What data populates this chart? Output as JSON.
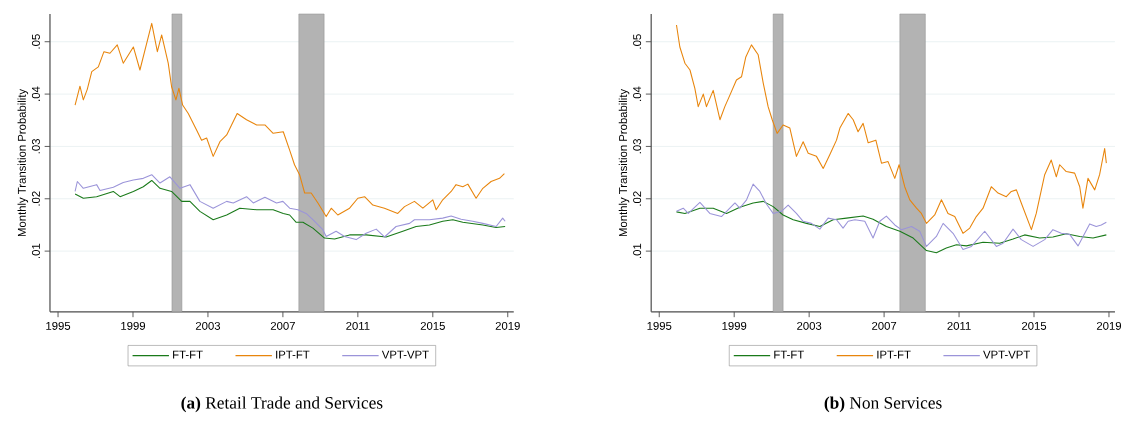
{
  "chart_data": [
    {
      "type": "line",
      "title": "**(a)** Retail Trade and Services",
      "ylabel": "Monthly Transition Probability",
      "xlim": [
        1994.57,
        2019.32
      ],
      "xticks": [
        1995,
        1999,
        2003,
        2007,
        2011,
        2015,
        2019
      ],
      "ylim": [
        -0.0016,
        0.0553
      ],
      "yticks": [
        {
          "value": 0.01,
          "label": ".01"
        },
        {
          "value": 0.02,
          "label": ".02"
        },
        {
          "value": 0.03,
          "label": ".03"
        },
        {
          "value": 0.04,
          "label": ".04"
        },
        {
          "value": 0.05,
          "label": ".05"
        }
      ],
      "grid": "y",
      "legend": "bottom",
      "line_style": "solid",
      "bands": [
        {
          "axis": "x",
          "from": 2001.08,
          "to": 2001.61,
          "color": "#b3b3b3"
        },
        {
          "axis": "x",
          "from": 2007.85,
          "to": 2009.2,
          "color": "#b3b3b3"
        }
      ],
      "series": [
        {
          "name": "FT-FT",
          "color": "#1a7a1a",
          "x": [
            1995.91,
            1996.35,
            1997.06,
            1997.95,
            1998.31,
            1999.02,
            1999.55,
            2000.0,
            2000.44,
            2001.06,
            2001.6,
            2002.04,
            2002.57,
            2003.28,
            2004.0,
            2004.7,
            2005.6,
            2006.48,
            2007.02,
            2007.36,
            2007.71,
            2008.07,
            2008.6,
            2009.22,
            2009.76,
            2010.56,
            2011.44,
            2012.51,
            2013.4,
            2014.11,
            2014.82,
            2015.53,
            2016.07,
            2016.6,
            2017.67,
            2018.38,
            2018.86
          ],
          "values": [
            0.0209,
            0.0201,
            0.0204,
            0.0214,
            0.0204,
            0.0214,
            0.0223,
            0.0235,
            0.022,
            0.0214,
            0.0195,
            0.0195,
            0.0176,
            0.016,
            0.0169,
            0.0182,
            0.0179,
            0.0179,
            0.0172,
            0.0169,
            0.0155,
            0.0155,
            0.0144,
            0.0125,
            0.0123,
            0.0131,
            0.0131,
            0.0127,
            0.0138,
            0.0147,
            0.015,
            0.0157,
            0.016,
            0.0155,
            0.015,
            0.0145,
            0.0147
          ]
        },
        {
          "name": "IPT-FT",
          "color": "#e8850c",
          "x": [
            1995.91,
            1996.17,
            1996.35,
            1996.56,
            1996.8,
            1997.15,
            1997.45,
            1997.77,
            1998.16,
            1998.48,
            1999.02,
            1999.37,
            1999.73,
            2000.0,
            2000.3,
            2000.53,
            2000.88,
            2001.06,
            2001.29,
            2001.45,
            2001.65,
            2001.95,
            2002.4,
            2002.66,
            2002.93,
            2003.28,
            2003.64,
            2004.0,
            2004.26,
            2004.56,
            2005.06,
            2005.6,
            2006.04,
            2006.48,
            2007.02,
            2007.36,
            2007.62,
            2007.89,
            2008.16,
            2008.51,
            2008.87,
            2009.31,
            2009.58,
            2009.93,
            2010.56,
            2011.0,
            2011.36,
            2011.8,
            2012.42,
            2013.13,
            2013.49,
            2014.02,
            2014.47,
            2015.0,
            2015.18,
            2015.53,
            2015.98,
            2016.24,
            2016.6,
            2016.87,
            2017.31,
            2017.67,
            2018.11,
            2018.56,
            2018.82
          ],
          "values": [
            0.0379,
            0.0415,
            0.0389,
            0.0409,
            0.0443,
            0.0452,
            0.0481,
            0.0478,
            0.0494,
            0.0459,
            0.049,
            0.0446,
            0.0497,
            0.0535,
            0.0481,
            0.0513,
            0.0459,
            0.0414,
            0.0389,
            0.0411,
            0.0379,
            0.0363,
            0.0331,
            0.0312,
            0.0316,
            0.0281,
            0.0309,
            0.0322,
            0.0341,
            0.0363,
            0.0351,
            0.0341,
            0.0341,
            0.0325,
            0.0328,
            0.0293,
            0.0265,
            0.0246,
            0.0211,
            0.0211,
            0.0192,
            0.0166,
            0.0182,
            0.0169,
            0.0182,
            0.0201,
            0.0204,
            0.0188,
            0.0182,
            0.0172,
            0.0185,
            0.0195,
            0.0182,
            0.0198,
            0.0179,
            0.0198,
            0.0214,
            0.0227,
            0.0223,
            0.0228,
            0.0201,
            0.022,
            0.0233,
            0.0239,
            0.0248
          ]
        },
        {
          "name": "VPT-VPT",
          "color": "#9b94d9",
          "x": [
            1995.91,
            1996.03,
            1996.35,
            1997.06,
            1997.24,
            1997.95,
            1998.48,
            1999.02,
            1999.55,
            2000.0,
            2000.44,
            2000.97,
            2001.51,
            2002.04,
            2002.57,
            2003.28,
            2004.0,
            2004.35,
            2005.06,
            2005.42,
            2006.04,
            2006.66,
            2007.0,
            2007.36,
            2007.8,
            2008.24,
            2008.6,
            2009.13,
            2009.31,
            2009.84,
            2010.29,
            2010.91,
            2011.44,
            2011.98,
            2012.42,
            2013.04,
            2013.76,
            2014.02,
            2014.82,
            2015.53,
            2015.98,
            2016.51,
            2017.13,
            2017.67,
            2018.38,
            2018.73,
            2018.86
          ],
          "values": [
            0.0214,
            0.0233,
            0.022,
            0.0227,
            0.0216,
            0.0222,
            0.0231,
            0.0236,
            0.0239,
            0.0246,
            0.023,
            0.0242,
            0.022,
            0.0227,
            0.0195,
            0.0182,
            0.0195,
            0.0192,
            0.0204,
            0.0192,
            0.0203,
            0.0192,
            0.0195,
            0.0182,
            0.0179,
            0.0172,
            0.016,
            0.0141,
            0.0128,
            0.0138,
            0.0128,
            0.0122,
            0.0134,
            0.0142,
            0.0127,
            0.0147,
            0.0153,
            0.016,
            0.016,
            0.0163,
            0.0167,
            0.0161,
            0.0157,
            0.0153,
            0.0147,
            0.0163,
            0.0157
          ]
        }
      ]
    },
    {
      "type": "line",
      "title": "**(b)** Non Services",
      "ylabel": "Monthly Transition Probability",
      "xlim": [
        1994.57,
        2019.32
      ],
      "xticks": [
        1995,
        1999,
        2003,
        2007,
        2011,
        2015,
        2019
      ],
      "ylim": [
        -0.0016,
        0.0553
      ],
      "yticks": [
        {
          "value": 0.01,
          "label": ".01"
        },
        {
          "value": 0.02,
          "label": ".02"
        },
        {
          "value": 0.03,
          "label": ".03"
        },
        {
          "value": 0.04,
          "label": ".04"
        },
        {
          "value": 0.05,
          "label": ".05"
        }
      ],
      "grid": "y",
      "legend": "bottom",
      "line_style": "solid",
      "bands": [
        {
          "axis": "x",
          "from": 2001.08,
          "to": 2001.61,
          "color": "#b3b3b3"
        },
        {
          "axis": "x",
          "from": 2007.84,
          "to": 2009.2,
          "color": "#b3b3b3"
        }
      ],
      "series": [
        {
          "name": "FT-FT",
          "color": "#1a7a1a",
          "x": [
            1995.92,
            1996.37,
            1997.17,
            1997.88,
            1998.59,
            1999.3,
            2000.01,
            2000.55,
            2001.08,
            2001.61,
            2002.15,
            2002.86,
            2003.57,
            2004.28,
            2004.99,
            2005.88,
            2006.41,
            2007.12,
            2007.84,
            2008.55,
            2009.26,
            2009.79,
            2010.32,
            2010.86,
            2011.39,
            2012.28,
            2013.17,
            2013.88,
            2014.5,
            2015.3,
            2016.01,
            2016.72,
            2017.44,
            2018.15,
            2018.86
          ],
          "values": [
            0.0175,
            0.0172,
            0.0182,
            0.0182,
            0.0172,
            0.0184,
            0.0192,
            0.0195,
            0.0185,
            0.0169,
            0.016,
            0.0153,
            0.0147,
            0.016,
            0.0163,
            0.0167,
            0.0161,
            0.0147,
            0.0138,
            0.0125,
            0.0101,
            0.0097,
            0.0106,
            0.0112,
            0.011,
            0.0117,
            0.0115,
            0.0123,
            0.0131,
            0.0125,
            0.0127,
            0.0133,
            0.0128,
            0.0125,
            0.0131
          ]
        },
        {
          "name": "IPT-FT",
          "color": "#e8850c",
          "x": [
            1995.92,
            1996.1,
            1996.37,
            1996.64,
            1996.9,
            1997.08,
            1997.35,
            1997.52,
            1997.88,
            1998.24,
            1998.5,
            1998.77,
            1999.12,
            1999.39,
            1999.62,
            1999.92,
            2000.28,
            2000.55,
            2000.81,
            2001.03,
            2001.29,
            2001.61,
            2001.97,
            2002.32,
            2002.68,
            2002.95,
            2003.39,
            2003.75,
            2004.1,
            2004.46,
            2004.64,
            2005.08,
            2005.35,
            2005.61,
            2005.88,
            2006.15,
            2006.56,
            2006.86,
            2007.21,
            2007.57,
            2007.8,
            2008.1,
            2008.37,
            2008.73,
            2008.99,
            2009.26,
            2009.7,
            2010.06,
            2010.41,
            2010.77,
            2011.21,
            2011.57,
            2011.92,
            2012.28,
            2012.72,
            2013.08,
            2013.52,
            2013.79,
            2014.06,
            2014.32,
            2014.86,
            2015.12,
            2015.57,
            2015.92,
            2016.19,
            2016.37,
            2016.72,
            2017.17,
            2017.44,
            2017.61,
            2017.88,
            2018.24,
            2018.5,
            2018.77,
            2018.86
          ],
          "values": [
            0.0532,
            0.049,
            0.0459,
            0.0446,
            0.0411,
            0.0376,
            0.04,
            0.0376,
            0.0407,
            0.0351,
            0.0376,
            0.0398,
            0.0427,
            0.0433,
            0.0471,
            0.0494,
            0.0475,
            0.0421,
            0.0376,
            0.0351,
            0.0325,
            0.0341,
            0.0335,
            0.0281,
            0.0309,
            0.0287,
            0.0281,
            0.0258,
            0.0284,
            0.0312,
            0.0335,
            0.0363,
            0.0351,
            0.0328,
            0.0344,
            0.0307,
            0.0312,
            0.0268,
            0.0271,
            0.0239,
            0.0265,
            0.0223,
            0.0198,
            0.0182,
            0.0172,
            0.0153,
            0.0169,
            0.0198,
            0.0172,
            0.0166,
            0.0134,
            0.0144,
            0.0166,
            0.0182,
            0.0223,
            0.0211,
            0.0204,
            0.0214,
            0.0217,
            0.0192,
            0.0141,
            0.0172,
            0.0246,
            0.0274,
            0.0242,
            0.0265,
            0.0252,
            0.0249,
            0.0223,
            0.0182,
            0.0239,
            0.0217,
            0.0246,
            0.0296,
            0.0268
          ]
        },
        {
          "name": "VPT-VPT",
          "color": "#9b94d9",
          "x": [
            1995.92,
            1996.28,
            1996.55,
            1997.17,
            1997.7,
            1998.32,
            1999.04,
            1999.3,
            1999.66,
            2000.01,
            2000.37,
            2000.72,
            2001.08,
            2001.52,
            2001.88,
            2002.32,
            2002.68,
            2003.12,
            2003.57,
            2004.01,
            2004.46,
            2004.81,
            2005.08,
            2005.44,
            2005.97,
            2006.41,
            2006.77,
            2007.12,
            2007.57,
            2007.92,
            2008.46,
            2008.9,
            2009.26,
            2009.79,
            2010.15,
            2010.68,
            2011.21,
            2011.66,
            2012.37,
            2012.99,
            2013.35,
            2013.88,
            2014.32,
            2014.95,
            2015.57,
            2016.01,
            2016.46,
            2016.9,
            2017.35,
            2017.97,
            2018.32,
            2018.59,
            2018.86
          ],
          "values": [
            0.0176,
            0.0182,
            0.0172,
            0.0193,
            0.0172,
            0.0166,
            0.0192,
            0.0182,
            0.0198,
            0.0228,
            0.0214,
            0.019,
            0.0172,
            0.0176,
            0.0188,
            0.0172,
            0.0157,
            0.0153,
            0.0142,
            0.0163,
            0.016,
            0.0144,
            0.0157,
            0.016,
            0.0157,
            0.0125,
            0.0157,
            0.0167,
            0.015,
            0.0141,
            0.0147,
            0.0138,
            0.0109,
            0.0128,
            0.0153,
            0.0134,
            0.0103,
            0.0109,
            0.0138,
            0.0109,
            0.0115,
            0.0142,
            0.0122,
            0.0109,
            0.0122,
            0.0141,
            0.0134,
            0.0132,
            0.011,
            0.0152,
            0.0147,
            0.015,
            0.0155
          ]
        }
      ]
    }
  ]
}
